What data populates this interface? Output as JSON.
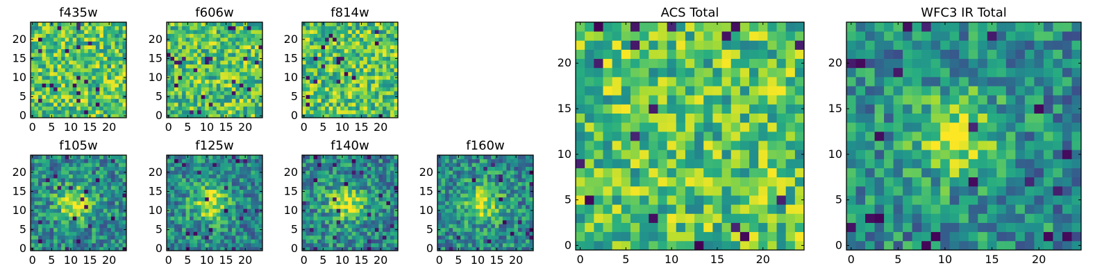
{
  "chart_data": [
    {
      "type": "heatmap",
      "title": "f435w",
      "rows": 25,
      "cols": 25,
      "xticks": [
        "0",
        "5",
        "10",
        "15",
        "20"
      ],
      "yticks": [
        "0",
        "5",
        "10",
        "15",
        "20"
      ],
      "xlim": [
        -0.5,
        24.5
      ],
      "ylim": [
        -0.5,
        24.5
      ],
      "colormap": "viridis",
      "structure": "noise",
      "seed": 11
    },
    {
      "type": "heatmap",
      "title": "f606w",
      "rows": 25,
      "cols": 25,
      "xticks": [
        "0",
        "5",
        "10",
        "15",
        "20"
      ],
      "yticks": [
        "0",
        "5",
        "10",
        "15",
        "20"
      ],
      "xlim": [
        -0.5,
        24.5
      ],
      "ylim": [
        -0.5,
        24.5
      ],
      "colormap": "viridis",
      "structure": "noise",
      "seed": 23
    },
    {
      "type": "heatmap",
      "title": "f814w",
      "rows": 25,
      "cols": 25,
      "xticks": [
        "0",
        "5",
        "10",
        "15",
        "20"
      ],
      "yticks": [
        "0",
        "5",
        "10",
        "15",
        "20"
      ],
      "xlim": [
        -0.5,
        24.5
      ],
      "ylim": [
        -0.5,
        24.5
      ],
      "colormap": "viridis",
      "structure": "noise",
      "seed": 37
    },
    {
      "type": "heatmap",
      "title": "f105w",
      "rows": 25,
      "cols": 25,
      "xticks": [
        "0",
        "5",
        "10",
        "15",
        "20"
      ],
      "yticks": [
        "0",
        "5",
        "10",
        "15",
        "20"
      ],
      "xlim": [
        -0.5,
        24.5
      ],
      "ylim": [
        -0.5,
        24.5
      ],
      "colormap": "viridis",
      "structure": "source",
      "source_center": [
        11,
        12
      ],
      "seed": 41
    },
    {
      "type": "heatmap",
      "title": "f125w",
      "rows": 25,
      "cols": 25,
      "xticks": [
        "0",
        "5",
        "10",
        "15",
        "20"
      ],
      "yticks": [
        "0",
        "5",
        "10",
        "15",
        "20"
      ],
      "xlim": [
        -0.5,
        24.5
      ],
      "ylim": [
        -0.5,
        24.5
      ],
      "colormap": "viridis",
      "structure": "source",
      "source_center": [
        11,
        12
      ],
      "seed": 53
    },
    {
      "type": "heatmap",
      "title": "f140w",
      "rows": 25,
      "cols": 25,
      "xticks": [
        "0",
        "5",
        "10",
        "15",
        "20"
      ],
      "yticks": [
        "0",
        "5",
        "10",
        "15",
        "20"
      ],
      "xlim": [
        -0.5,
        24.5
      ],
      "ylim": [
        -0.5,
        24.5
      ],
      "colormap": "viridis",
      "structure": "source",
      "source_center": [
        11,
        12
      ],
      "seed": 67
    },
    {
      "type": "heatmap",
      "title": "f160w",
      "rows": 25,
      "cols": 25,
      "xticks": [
        "0",
        "5",
        "10",
        "15",
        "20"
      ],
      "yticks": [
        "0",
        "5",
        "10",
        "15",
        "20"
      ],
      "xlim": [
        -0.5,
        24.5
      ],
      "ylim": [
        -0.5,
        24.5
      ],
      "colormap": "viridis",
      "structure": "source",
      "source_center": [
        11,
        12
      ],
      "seed": 79
    },
    {
      "type": "heatmap",
      "title": "ACS Total",
      "rows": 25,
      "cols": 25,
      "xticks": [
        "0",
        "5",
        "10",
        "15",
        "20"
      ],
      "yticks": [
        "0",
        "5",
        "10",
        "15",
        "20"
      ],
      "xlim": [
        -0.5,
        24.5
      ],
      "ylim": [
        -0.5,
        24.5
      ],
      "colormap": "viridis",
      "structure": "noise",
      "seed": 97
    },
    {
      "type": "heatmap",
      "title": "WFC3 IR Total",
      "rows": 25,
      "cols": 25,
      "xticks": [
        "0",
        "5",
        "10",
        "15",
        "20"
      ],
      "yticks": [
        "0",
        "5",
        "10",
        "15",
        "20"
      ],
      "xlim": [
        -0.5,
        24.5
      ],
      "ylim": [
        -0.5,
        24.5
      ],
      "colormap": "viridis",
      "structure": "source",
      "source_center": [
        11,
        12
      ],
      "seed": 113
    }
  ]
}
